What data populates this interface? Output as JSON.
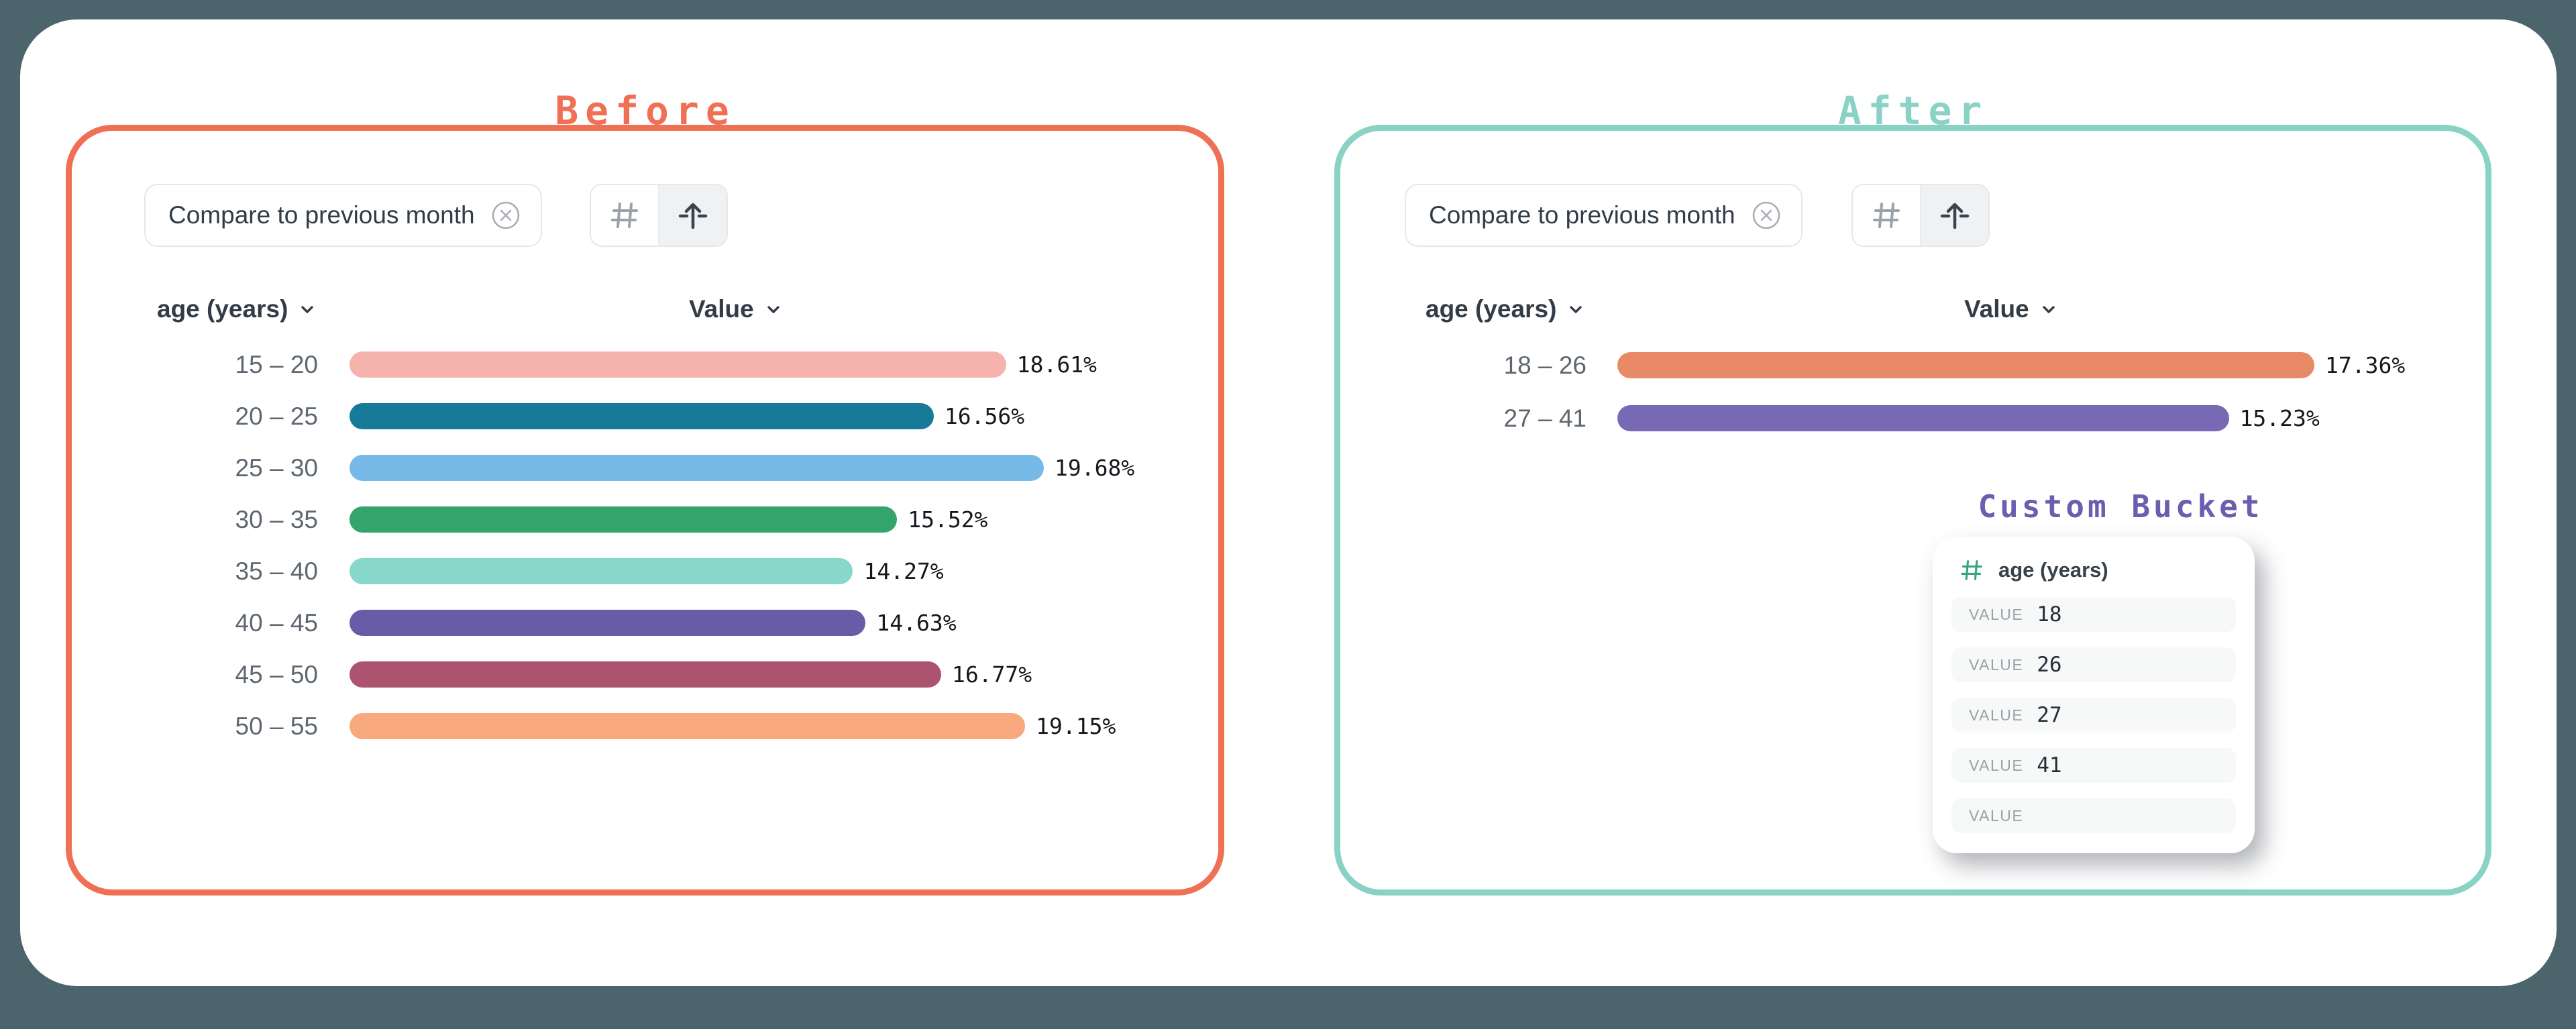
{
  "page": {
    "background": "#4C656D",
    "card_background": "#FFFFFF"
  },
  "panels": {
    "before": {
      "title": "Before",
      "accent_color": "#EF7054",
      "chip": "Compare to previous month",
      "toolbar": {
        "buttons": [
          "hash",
          "arrow-up-from-line"
        ],
        "active": "arrow-up-from-line"
      },
      "columns": {
        "dimension": "age (years)",
        "value": "Value"
      }
    },
    "after": {
      "title": "After",
      "accent_color": "#8BD2C6",
      "chip": "Compare to previous month",
      "toolbar": {
        "buttons": [
          "hash",
          "arrow-up-from-line"
        ],
        "active": "arrow-up-from-line"
      },
      "columns": {
        "dimension": "age (years)",
        "value": "Value"
      },
      "custom_bucket": {
        "title": "Custom Bucket",
        "title_color": "#6B5EAE",
        "field": {
          "icon": "hash",
          "name": "age (years)",
          "icon_color": "#34A77C"
        },
        "rows": [
          {
            "label": "VALUE",
            "value": "18"
          },
          {
            "label": "VALUE",
            "value": "26"
          },
          {
            "label": "VALUE",
            "value": "27"
          },
          {
            "label": "VALUE",
            "value": "41"
          },
          {
            "label": "VALUE",
            "value": ""
          }
        ]
      }
    }
  },
  "chart_data": [
    {
      "type": "bar",
      "orientation": "horizontal",
      "title": "Before",
      "xlabel": "Value",
      "ylabel": "age (years)",
      "categories": [
        "15 – 20",
        "20 – 25",
        "25 – 30",
        "30 – 35",
        "35 – 40",
        "40 – 45",
        "45 – 50",
        "50 – 55"
      ],
      "values": [
        18.61,
        16.56,
        19.68,
        15.52,
        14.27,
        14.63,
        16.77,
        19.15
      ],
      "labels": [
        "18.61%",
        "16.56%",
        "19.68%",
        "15.52%",
        "14.27%",
        "14.63%",
        "16.77%",
        "19.15%"
      ],
      "colors": [
        "#F6B3AD",
        "#177A99",
        "#77BAE8",
        "#35A46C",
        "#87D7CA",
        "#685CA9",
        "#AC5370",
        "#F8A97E"
      ],
      "unit": "percent",
      "grid": false,
      "legend": false
    },
    {
      "type": "bar",
      "orientation": "horizontal",
      "title": "After",
      "xlabel": "Value",
      "ylabel": "age (years)",
      "categories": [
        "18 – 26",
        "27 – 41"
      ],
      "values": [
        17.36,
        15.23
      ],
      "labels": [
        "17.36%",
        "15.23%"
      ],
      "colors": [
        "#E98A67",
        "#7869B4"
      ],
      "unit": "percent",
      "grid": false,
      "legend": false
    }
  ]
}
